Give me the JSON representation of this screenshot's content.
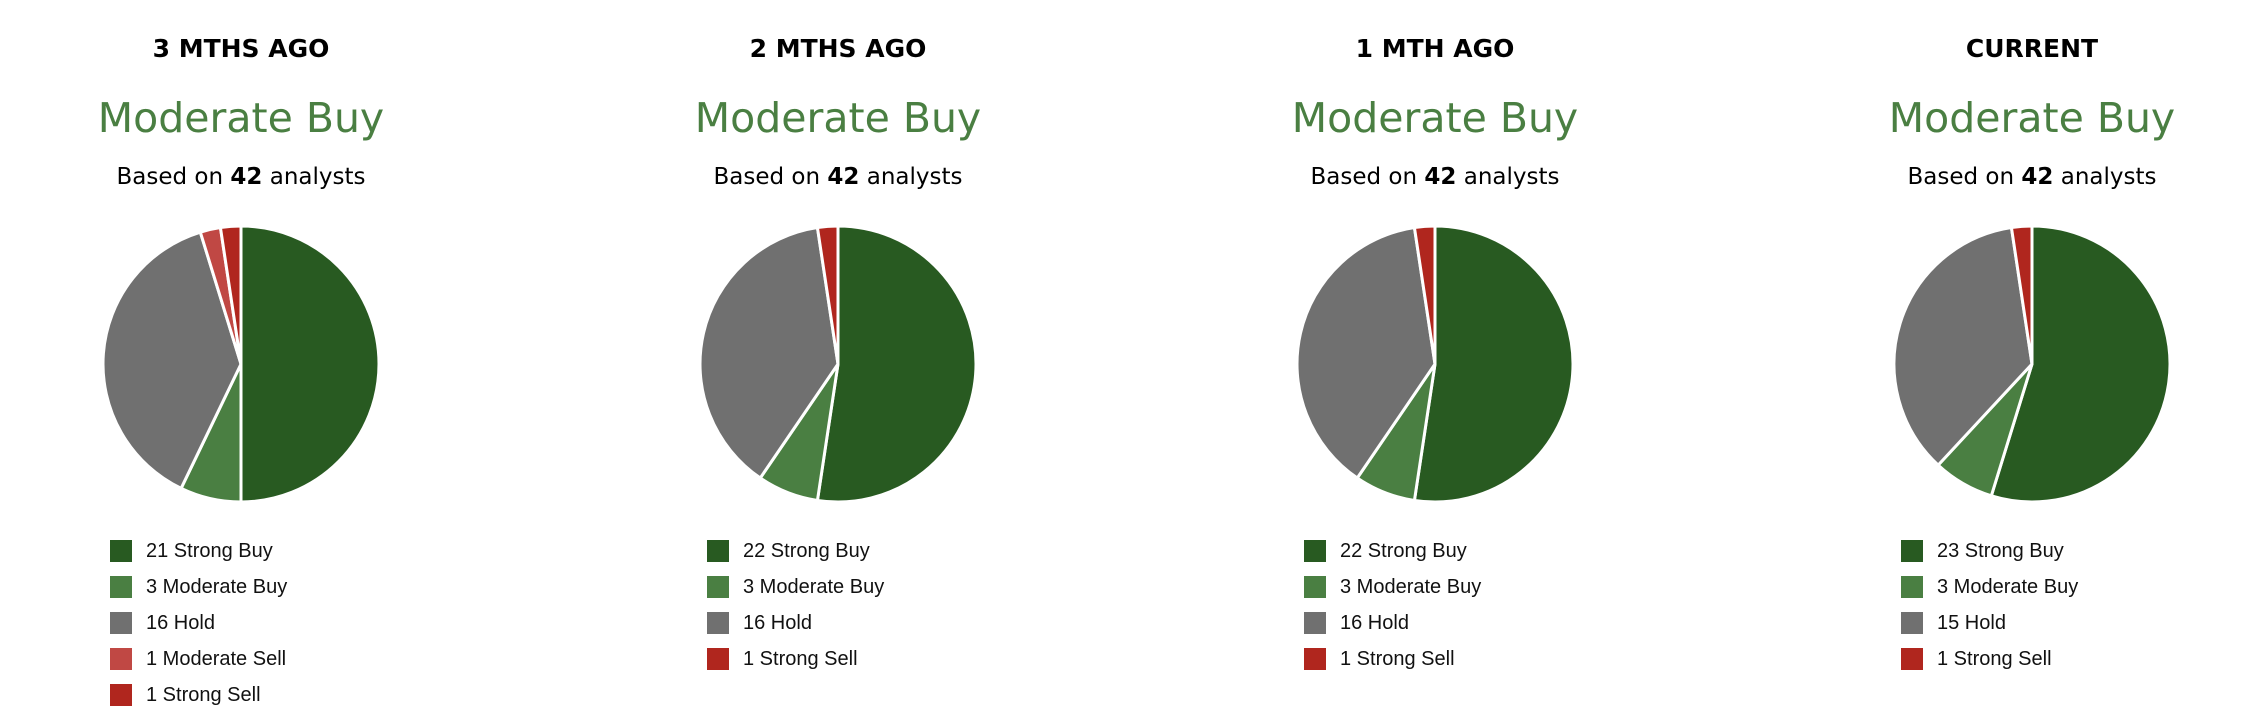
{
  "chart_data": [
    {
      "type": "pie",
      "title": "3 MTHS AGO",
      "consensus": "Moderate Buy",
      "based_prefix": "Based on",
      "analysts": "42",
      "based_suffix": "analysts",
      "slices": [
        {
          "label": "21 Strong Buy",
          "value": 21,
          "color": "#285a21"
        },
        {
          "label": "3 Moderate Buy",
          "value": 3,
          "color": "#4a7f42"
        },
        {
          "label": "16 Hold",
          "value": 16,
          "color": "#707070"
        },
        {
          "label": "1 Moderate Sell",
          "value": 1,
          "color": "#c04844"
        },
        {
          "label": "1 Strong Sell",
          "value": 1,
          "color": "#b0261e"
        }
      ]
    },
    {
      "type": "pie",
      "title": "2 MTHS AGO",
      "consensus": "Moderate Buy",
      "based_prefix": "Based on",
      "analysts": "42",
      "based_suffix": "analysts",
      "slices": [
        {
          "label": "22 Strong Buy",
          "value": 22,
          "color": "#285a21"
        },
        {
          "label": "3 Moderate Buy",
          "value": 3,
          "color": "#4a7f42"
        },
        {
          "label": "16 Hold",
          "value": 16,
          "color": "#707070"
        },
        {
          "label": "1 Strong Sell",
          "value": 1,
          "color": "#b0261e"
        }
      ]
    },
    {
      "type": "pie",
      "title": "1 MTH AGO",
      "consensus": "Moderate Buy",
      "based_prefix": "Based on",
      "analysts": "42",
      "based_suffix": "analysts",
      "slices": [
        {
          "label": "22 Strong Buy",
          "value": 22,
          "color": "#285a21"
        },
        {
          "label": "3 Moderate Buy",
          "value": 3,
          "color": "#4a7f42"
        },
        {
          "label": "16 Hold",
          "value": 16,
          "color": "#707070"
        },
        {
          "label": "1 Strong Sell",
          "value": 1,
          "color": "#b0261e"
        }
      ]
    },
    {
      "type": "pie",
      "title": "CURRENT",
      "consensus": "Moderate Buy",
      "based_prefix": "Based on",
      "analysts": "42",
      "based_suffix": "analysts",
      "slices": [
        {
          "label": "23 Strong Buy",
          "value": 23,
          "color": "#285a21"
        },
        {
          "label": "3 Moderate Buy",
          "value": 3,
          "color": "#4a7f42"
        },
        {
          "label": "15 Hold",
          "value": 15,
          "color": "#707070"
        },
        {
          "label": "1 Strong Sell",
          "value": 1,
          "color": "#b0261e"
        }
      ]
    }
  ]
}
